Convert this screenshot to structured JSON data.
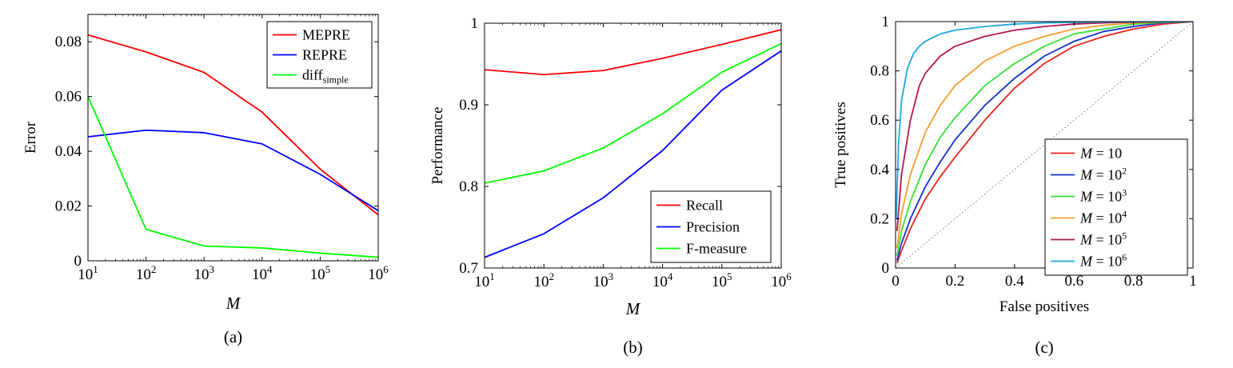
{
  "chart_data": [
    {
      "type": "line",
      "panel_label": "(a)",
      "xlabel": "M",
      "ylabel": "Error",
      "x_scale": "log",
      "x": [
        10,
        100,
        1000,
        10000,
        100000,
        1000000
      ],
      "x_tick_labels": [
        {
          "base": "10",
          "exp": "1"
        },
        {
          "base": "10",
          "exp": "2"
        },
        {
          "base": "10",
          "exp": "3"
        },
        {
          "base": "10",
          "exp": "4"
        },
        {
          "base": "10",
          "exp": "5"
        },
        {
          "base": "10",
          "exp": "6"
        }
      ],
      "y_ticks": [
        0,
        0.02,
        0.04,
        0.06,
        0.08
      ],
      "y_tick_labels": [
        "0",
        "0.02",
        "0.04",
        "0.06",
        "0.08"
      ],
      "ylim": [
        0,
        0.09
      ],
      "legend_position": "top-right",
      "series": [
        {
          "name": "MEPRE",
          "color": "#ff0000",
          "values": [
            0.0825,
            0.0763,
            0.0688,
            0.0543,
            0.0335,
            0.0168
          ]
        },
        {
          "name": "REPRE",
          "color": "#0000ff",
          "values": [
            0.0453,
            0.0477,
            0.0468,
            0.0427,
            0.0316,
            0.0183
          ]
        },
        {
          "name": "diff",
          "name_subscript": "simple",
          "color": "#00ff00",
          "values": [
            0.06,
            0.0115,
            0.0054,
            0.0047,
            0.0028,
            0.0013
          ]
        }
      ]
    },
    {
      "type": "line",
      "panel_label": "(b)",
      "xlabel": "M",
      "ylabel": "Performance",
      "x_scale": "log",
      "x": [
        10,
        100,
        1000,
        10000,
        100000,
        1000000
      ],
      "x_tick_labels": [
        {
          "base": "10",
          "exp": "1"
        },
        {
          "base": "10",
          "exp": "2"
        },
        {
          "base": "10",
          "exp": "3"
        },
        {
          "base": "10",
          "exp": "4"
        },
        {
          "base": "10",
          "exp": "5"
        },
        {
          "base": "10",
          "exp": "6"
        }
      ],
      "y_ticks": [
        0.7,
        0.8,
        0.9,
        1.0
      ],
      "y_tick_labels": [
        "0.7",
        "0.8",
        "0.9",
        "1"
      ],
      "ylim": [
        0.7,
        1.0
      ],
      "legend_position": "bottom-right",
      "series": [
        {
          "name": "Recall",
          "color": "#ff0000",
          "values": [
            0.943,
            0.937,
            0.942,
            0.957,
            0.974,
            0.992
          ]
        },
        {
          "name": "Precision",
          "color": "#0000ff",
          "values": [
            0.713,
            0.742,
            0.786,
            0.844,
            0.918,
            0.966
          ]
        },
        {
          "name": "F-measure",
          "color": "#00ff00",
          "values": [
            0.804,
            0.819,
            0.847,
            0.889,
            0.94,
            0.975
          ]
        }
      ]
    },
    {
      "type": "line",
      "panel_label": "(c)",
      "xlabel": "False positives",
      "ylabel": "True positives",
      "x_ticks": [
        0,
        0.2,
        0.4,
        0.6,
        0.8,
        1
      ],
      "x_tick_labels": [
        "0",
        "0.2",
        "0.4",
        "0.6",
        "0.8",
        "1"
      ],
      "y_ticks": [
        0,
        0.2,
        0.4,
        0.6,
        0.8,
        1
      ],
      "y_tick_labels": [
        "0",
        "0.2",
        "0.4",
        "0.6",
        "0.8",
        "1"
      ],
      "xlim": [
        0,
        1
      ],
      "ylim": [
        0,
        1
      ],
      "legend_position": "bottom-right",
      "diagonal_reference": true,
      "series": [
        {
          "name": "M = 10",
          "label_var": "M",
          "label_base": "10",
          "label_exp": "",
          "color": "#e8231f",
          "x": [
            0.005,
            0.02,
            0.05,
            0.1,
            0.15,
            0.2,
            0.3,
            0.4,
            0.5,
            0.6,
            0.7,
            0.8,
            0.9,
            1.0
          ],
          "y": [
            0.02,
            0.07,
            0.16,
            0.28,
            0.37,
            0.45,
            0.6,
            0.73,
            0.83,
            0.9,
            0.94,
            0.97,
            0.99,
            1.0
          ]
        },
        {
          "name": "M = 10^2",
          "label_var": "M",
          "label_base": "10",
          "label_exp": "2",
          "color": "#1330c9",
          "x": [
            0.005,
            0.02,
            0.05,
            0.1,
            0.15,
            0.2,
            0.3,
            0.4,
            0.5,
            0.6,
            0.7,
            0.8,
            0.9,
            1.0
          ],
          "y": [
            0.03,
            0.1,
            0.2,
            0.33,
            0.43,
            0.52,
            0.66,
            0.77,
            0.86,
            0.92,
            0.96,
            0.98,
            0.995,
            1.0
          ]
        },
        {
          "name": "M = 10^3",
          "label_var": "M",
          "label_base": "10",
          "label_exp": "3",
          "color": "#35e035",
          "x": [
            0.005,
            0.02,
            0.05,
            0.1,
            0.15,
            0.2,
            0.3,
            0.4,
            0.5,
            0.6,
            0.7,
            0.8,
            0.9,
            1.0
          ],
          "y": [
            0.05,
            0.15,
            0.27,
            0.42,
            0.53,
            0.61,
            0.74,
            0.83,
            0.9,
            0.95,
            0.97,
            0.99,
            0.997,
            1.0
          ]
        },
        {
          "name": "M = 10^4",
          "label_var": "M",
          "label_base": "10",
          "label_exp": "4",
          "color": "#f39c2e",
          "x": [
            0.005,
            0.02,
            0.05,
            0.1,
            0.15,
            0.2,
            0.3,
            0.4,
            0.5,
            0.6,
            0.7,
            0.8,
            0.9,
            1.0
          ],
          "y": [
            0.08,
            0.22,
            0.38,
            0.55,
            0.66,
            0.74,
            0.84,
            0.9,
            0.94,
            0.97,
            0.985,
            0.995,
            0.999,
            1.0
          ]
        },
        {
          "name": "M = 10^5",
          "label_var": "M",
          "label_base": "10",
          "label_exp": "5",
          "color": "#b0184e",
          "x": [
            0.005,
            0.02,
            0.05,
            0.08,
            0.1,
            0.15,
            0.2,
            0.3,
            0.4,
            0.5,
            0.6,
            0.7,
            0.8,
            0.9,
            1.0
          ],
          "y": [
            0.15,
            0.38,
            0.6,
            0.74,
            0.79,
            0.86,
            0.9,
            0.94,
            0.965,
            0.98,
            0.99,
            0.995,
            0.998,
            0.999,
            1.0
          ]
        },
        {
          "name": "M = 10^6",
          "label_var": "M",
          "label_base": "10",
          "label_exp": "6",
          "color": "#1ba9de",
          "x": [
            0.002,
            0.01,
            0.02,
            0.04,
            0.06,
            0.08,
            0.1,
            0.15,
            0.2,
            0.3,
            0.4,
            0.5,
            0.6,
            0.7,
            0.8,
            0.9,
            1.0
          ],
          "y": [
            0.2,
            0.5,
            0.68,
            0.81,
            0.87,
            0.9,
            0.92,
            0.95,
            0.965,
            0.98,
            0.99,
            0.995,
            0.997,
            0.999,
            0.9995,
            0.9998,
            1.0
          ]
        }
      ]
    }
  ]
}
